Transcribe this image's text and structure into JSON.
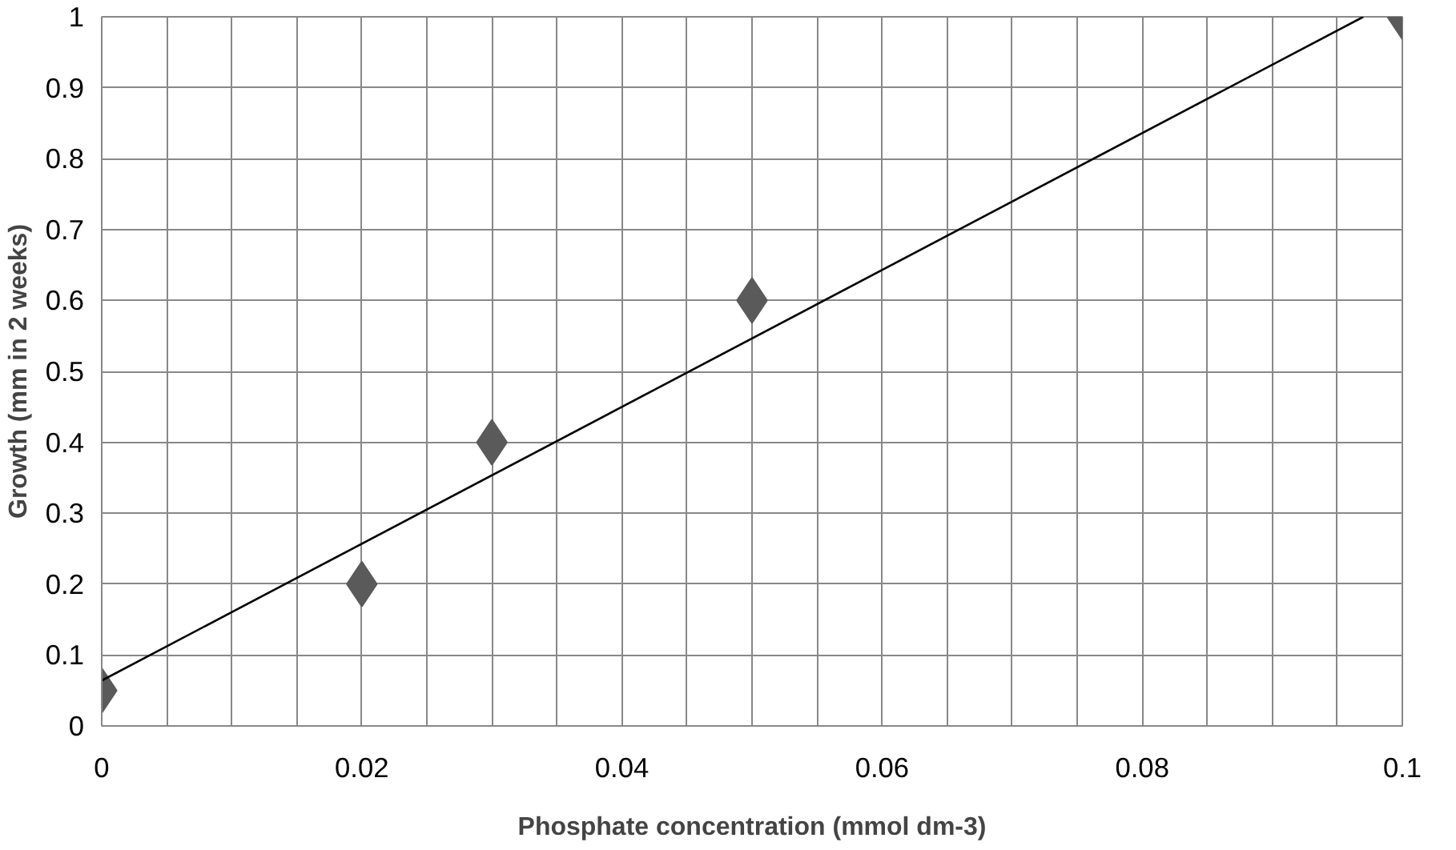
{
  "chart_data": {
    "type": "scatter",
    "xlabel": "Phosphate concentration (mmol dm-3)",
    "ylabel": "Growth (mm in 2 weeks)",
    "series": [
      {
        "color": "#5a5a5a",
        "x": [
          0,
          0.02,
          0.03,
          0.05,
          0.1
        ],
        "values": [
          0.05,
          0.2,
          0.4,
          0.6,
          1.0
        ],
        "marker": "diamond"
      },
      {
        "type": "line",
        "color": "#000000",
        "x": [
          0,
          0.097
        ],
        "values": [
          0.064,
          1.0
        ]
      }
    ],
    "xlim": [
      0,
      0.1
    ],
    "ylim": [
      0,
      1
    ],
    "xticks": [
      0,
      {
        "value": 0.005,
        "label": null
      },
      {
        "value": 0.01,
        "label": null
      },
      {
        "value": 0.015,
        "label": null
      },
      0.02,
      {
        "value": 0.025,
        "label": null
      },
      {
        "value": 0.03,
        "label": null
      },
      {
        "value": 0.035,
        "label": null
      },
      0.04,
      {
        "value": 0.045,
        "label": null
      },
      {
        "value": 0.05,
        "label": null
      },
      {
        "value": 0.055,
        "label": null
      },
      0.06,
      {
        "value": 0.065,
        "label": null
      },
      {
        "value": 0.07,
        "label": null
      },
      {
        "value": 0.075,
        "label": null
      },
      0.08,
      {
        "value": 0.085,
        "label": null
      },
      {
        "value": 0.09,
        "label": null
      },
      {
        "value": 0.095,
        "label": null
      },
      0.1
    ],
    "yticks": [
      0,
      0.1,
      0.2,
      0.3,
      0.4,
      0.5,
      0.6,
      0.7,
      0.8,
      0.9,
      1
    ],
    "grid": true
  }
}
